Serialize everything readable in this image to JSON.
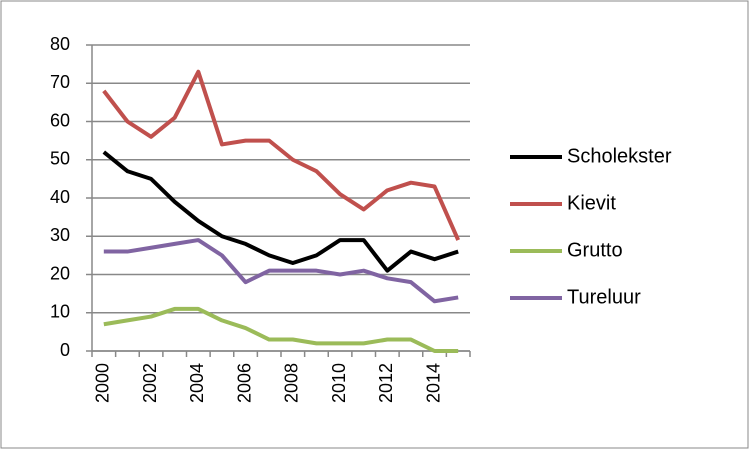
{
  "chart_data": {
    "type": "line",
    "categories": [
      "2000",
      null,
      "2002",
      null,
      "2004",
      null,
      "2006",
      null,
      "2008",
      null,
      "2010",
      null,
      "2012",
      null,
      "2014",
      null
    ],
    "series": [
      {
        "name": "Scholekster",
        "color": "#000000",
        "values": [
          52,
          47,
          45,
          39,
          34,
          30,
          28,
          25,
          23,
          25,
          29,
          29,
          21,
          26,
          24,
          26
        ]
      },
      {
        "name": "Kievit",
        "color": "#c0504d",
        "values": [
          68,
          60,
          56,
          61,
          73,
          54,
          55,
          55,
          50,
          47,
          41,
          37,
          42,
          44,
          43,
          29
        ]
      },
      {
        "name": "Grutto",
        "color": "#9bbb59",
        "values": [
          7,
          8,
          9,
          11,
          11,
          8,
          6,
          3,
          3,
          2,
          2,
          2,
          3,
          3,
          0,
          0
        ]
      },
      {
        "name": "Tureluur",
        "color": "#8064a2",
        "values": [
          26,
          26,
          27,
          28,
          29,
          25,
          18,
          21,
          21,
          21,
          20,
          21,
          19,
          18,
          13,
          14
        ]
      }
    ],
    "ylim": [
      0,
      80
    ],
    "yticks": [
      0,
      10,
      20,
      30,
      40,
      50,
      60,
      70,
      80
    ],
    "grid": true,
    "legend": "right"
  }
}
